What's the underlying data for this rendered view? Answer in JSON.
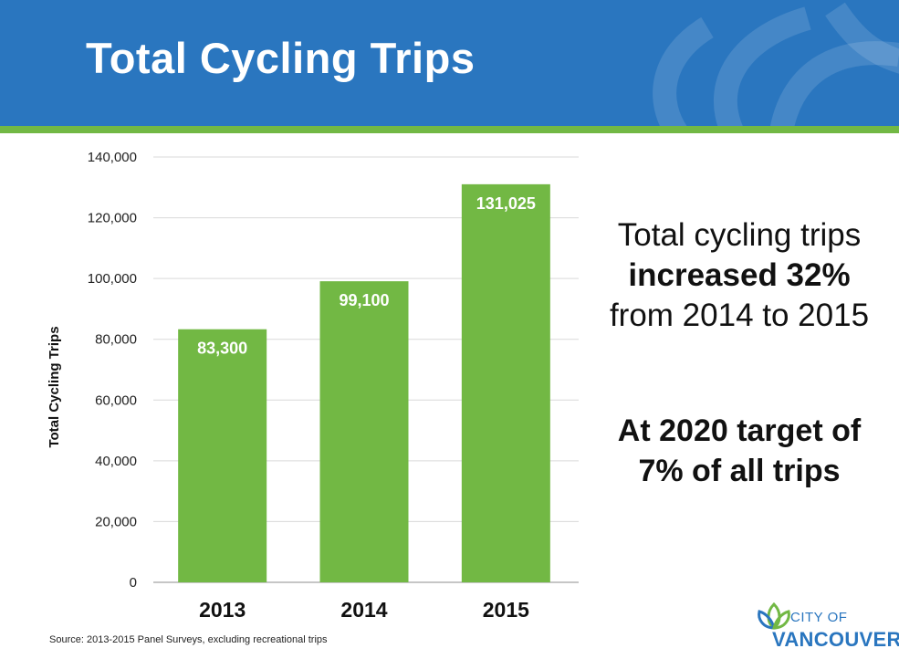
{
  "header": {
    "title": "Total Cycling Trips"
  },
  "callout": {
    "line1_a": "Total cycling trips ",
    "line1_bold": "increased 32%",
    "line1_b": " from 2014 to 2015",
    "line2": "At 2020 target of 7% of all trips"
  },
  "source": "Source: 2013-2015 Panel Surveys, excluding recreational trips",
  "logo": {
    "city": "CITY OF",
    "name": "VANCOUVER"
  },
  "colors": {
    "header_blue": "#2a76bf",
    "bar_green": "#72b844",
    "gridline": "#d9d9d9"
  },
  "chart_data": {
    "type": "bar",
    "categories": [
      "2013",
      "2014",
      "2015"
    ],
    "values": [
      83300,
      99100,
      131025
    ],
    "value_labels": [
      "83,300",
      "99,100",
      "131,025"
    ],
    "ylabel": "Total  Cycling  Trips",
    "ylim": [
      0,
      140000
    ],
    "yticks": [
      0,
      20000,
      40000,
      60000,
      80000,
      100000,
      120000,
      140000
    ],
    "ytick_labels": [
      "0",
      "20,000",
      "40,000",
      "60,000",
      "80,000",
      "100,000",
      "120,000",
      "140,000"
    ],
    "grid": true,
    "legend": "none"
  }
}
